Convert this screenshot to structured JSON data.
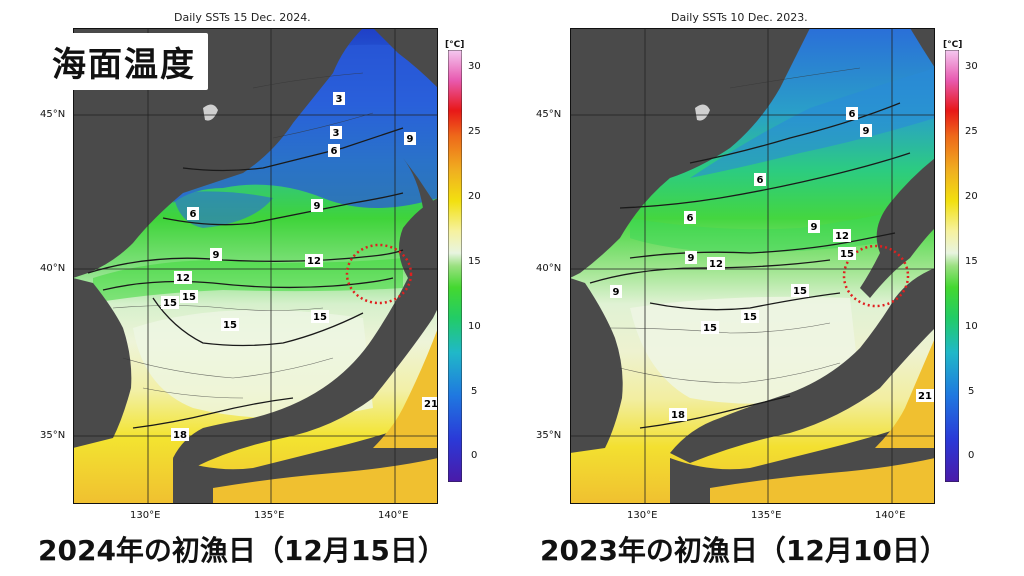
{
  "page_title": "海面温度",
  "colors": {
    "land": "#4a4a4a",
    "cold_deep": "#1f3fc7",
    "cold": "#2f7fe0",
    "cool": "#2fc0a0",
    "mid": "#3ad23a",
    "mild": "#8ee08a",
    "warm_light": "#e0f3dc",
    "warm": "#f0f0a0",
    "yellow": "#f3e61a",
    "orange": "#f0b030",
    "circle": "#e02020"
  },
  "colorbar": {
    "unit": "[°C]",
    "ticks": [
      "30",
      "25",
      "20",
      "15",
      "10",
      "5",
      "0"
    ],
    "min": -2,
    "max": 32
  },
  "maps": [
    {
      "id": "2024",
      "title": "Daily SSTs 15 Dec. 2024.",
      "caption": "2024年の初漁日（12月15日）",
      "lat_labels": [
        "45°N",
        "40°N",
        "35°N"
      ],
      "lon_labels": [
        "130°E",
        "135°E",
        "140°E"
      ],
      "contour_labels": [
        "3",
        "3",
        "6",
        "9",
        "9",
        "6",
        "9",
        "12",
        "12",
        "15",
        "15",
        "15",
        "15",
        "18",
        "21"
      ]
    },
    {
      "id": "2023",
      "title": "Daily SSTs 10 Dec. 2023.",
      "caption": "2023年の初漁日（12月10日）",
      "lat_labels": [
        "45°N",
        "40°N",
        "35°N"
      ],
      "lon_labels": [
        "130°E",
        "135°E",
        "140°E"
      ],
      "contour_labels": [
        "6",
        "9",
        "6",
        "6",
        "9",
        "12",
        "15",
        "9",
        "12",
        "9",
        "15",
        "15",
        "15",
        "18",
        "21"
      ]
    }
  ]
}
